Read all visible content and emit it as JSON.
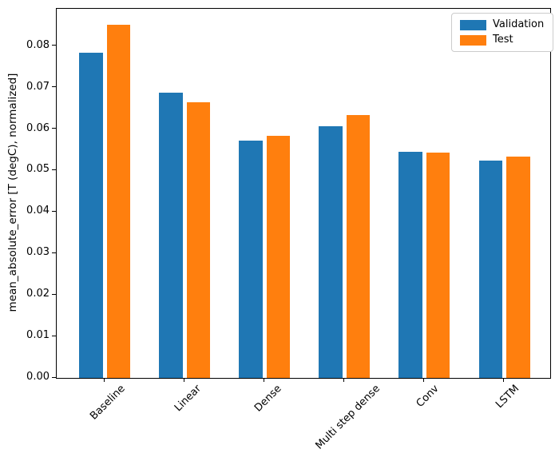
{
  "chart_data": {
    "type": "bar",
    "title": "",
    "xlabel": "",
    "ylabel": "mean_absolute_error [T (degC), normalized]",
    "categories": [
      "Baseline",
      "Linear",
      "Dense",
      "Multi step dense",
      "Conv",
      "LSTM"
    ],
    "series": [
      {
        "name": "Validation",
        "color": "#1f77b4",
        "values": [
          0.0785,
          0.0687,
          0.0573,
          0.0607,
          0.0545,
          0.0524
        ]
      },
      {
        "name": "Test",
        "color": "#ff7f0e",
        "values": [
          0.0852,
          0.0665,
          0.0583,
          0.0634,
          0.0543,
          0.0534
        ]
      }
    ],
    "yticks": [
      0.0,
      0.01,
      0.02,
      0.03,
      0.04,
      0.05,
      0.06,
      0.07,
      0.08
    ],
    "ytick_format_decimals": 2,
    "ylim": [
      0,
      0.089
    ],
    "x_tick_rotation": 45,
    "grid": false,
    "legend_position": "upper right",
    "background_color": "#ffffff",
    "spine_color": "#000000"
  }
}
